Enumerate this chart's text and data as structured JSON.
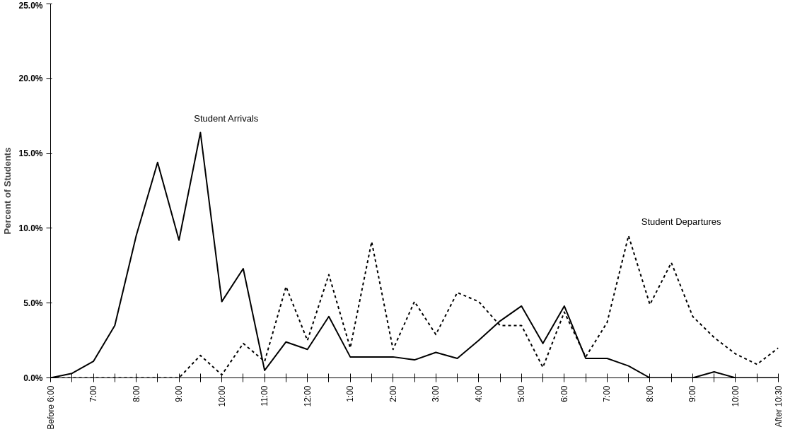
{
  "chart_data": {
    "type": "line",
    "ylabel": "Percent of Students",
    "categories": [
      "Before 6:00",
      null,
      "7:00",
      null,
      "8:00",
      null,
      "9:00",
      null,
      "10:00",
      null,
      "11:00",
      null,
      "12:00",
      null,
      "1:00",
      null,
      "2:00",
      null,
      "3:00",
      null,
      "4:00",
      null,
      "5:00",
      null,
      "6:00",
      null,
      "7:00",
      null,
      "8:00",
      null,
      "9:00",
      null,
      "10:00",
      null,
      "After 10:30"
    ],
    "series": [
      {
        "name": "Student Arrivals",
        "color": "#000000",
        "line_style": "solid",
        "values": [
          0,
          0.3,
          1.1,
          3.5,
          9.5,
          14.4,
          9.2,
          16.4,
          5.1,
          7.3,
          0.5,
          2.4,
          1.9,
          4.1,
          1.4,
          1.4,
          1.4,
          1.2,
          1.7,
          1.3,
          2.5,
          3.8,
          4.8,
          2.3,
          4.8,
          1.3,
          1.3,
          0.8,
          0,
          0,
          0,
          0.4,
          0,
          0,
          0
        ]
      },
      {
        "name": "Student Departures",
        "color": "#000000",
        "line_style": "dashed",
        "values": [
          0,
          0,
          0,
          0,
          0,
          0,
          0,
          1.5,
          0.2,
          2.3,
          1.1,
          6.1,
          2.5,
          6.9,
          2.0,
          9.1,
          1.9,
          5.1,
          2.9,
          5.7,
          5.1,
          3.5,
          3.5,
          0.7,
          4.4,
          1.4,
          3.7,
          9.5,
          4.9,
          7.7,
          4.1,
          2.7,
          1.6,
          0.9,
          2.0
        ]
      }
    ],
    "ylim": [
      0,
      25
    ],
    "yticks": [
      {
        "value": 0,
        "label": "0.0%"
      },
      {
        "value": 5,
        "label": "5.0%"
      },
      {
        "value": 10,
        "label": "10.0%"
      },
      {
        "value": 15,
        "label": "15.0%"
      },
      {
        "value": 20,
        "label": "20.0%"
      },
      {
        "value": 25,
        "label": "25.0%"
      }
    ],
    "grid": false,
    "legend": false,
    "marker": "none"
  }
}
